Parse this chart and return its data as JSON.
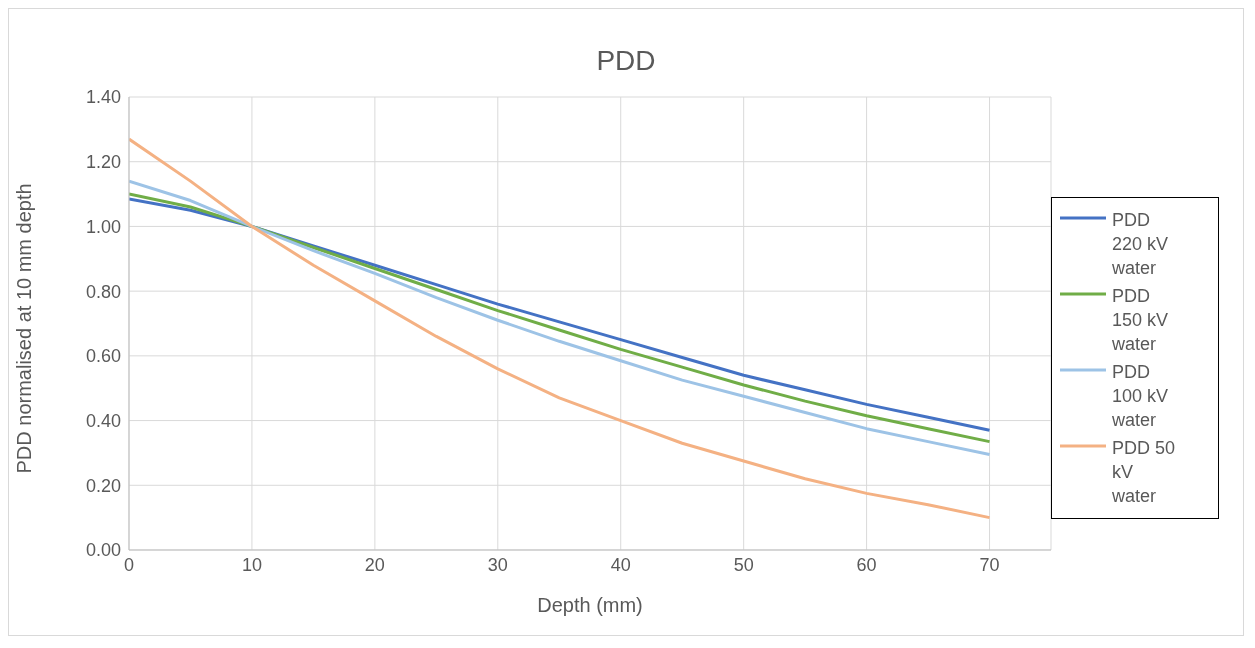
{
  "chart_data": {
    "type": "line",
    "title": "PDD",
    "xlabel": "Depth (mm)",
    "ylabel": "PDD normalised at 10 mm depth",
    "xlim": [
      0,
      75
    ],
    "xticks": [
      0,
      10,
      20,
      30,
      40,
      50,
      60,
      70
    ],
    "ylim": [
      0,
      1.4
    ],
    "yticks": [
      {
        "value": 0,
        "label": "0.00"
      },
      {
        "value": 0.2,
        "label": "0.20"
      },
      {
        "value": 0.4,
        "label": "0.40"
      },
      {
        "value": 0.6,
        "label": "0.60"
      },
      {
        "value": 0.8,
        "label": "0.80"
      },
      {
        "value": 1,
        "label": "1.00"
      },
      {
        "value": 1.2,
        "label": "1.20"
      },
      {
        "value": 1.4,
        "label": "1.40"
      }
    ],
    "grid": true,
    "legend": "right",
    "marker": "none",
    "line_style": "solid",
    "x": [
      0,
      5,
      10,
      15,
      20,
      25,
      30,
      35,
      40,
      45,
      50,
      55,
      60,
      65,
      70
    ],
    "series": [
      {
        "name": "PDD 220 kV water",
        "color": "#4472c4",
        "values": [
          1.085,
          1.05,
          1.0,
          0.94,
          0.88,
          0.82,
          0.76,
          0.705,
          0.65,
          0.595,
          0.54,
          0.495,
          0.45,
          0.41,
          0.37
        ]
      },
      {
        "name": "PDD 150 kV water",
        "color": "#70ad47",
        "values": [
          1.1,
          1.06,
          1.0,
          0.935,
          0.87,
          0.805,
          0.74,
          0.68,
          0.62,
          0.565,
          0.51,
          0.46,
          0.415,
          0.375,
          0.335
        ]
      },
      {
        "name": "PDD 100 kV water",
        "color": "#9dc3e6",
        "values": [
          1.14,
          1.08,
          1.0,
          0.925,
          0.855,
          0.78,
          0.71,
          0.645,
          0.585,
          0.525,
          0.475,
          0.425,
          0.375,
          0.335,
          0.295
        ]
      },
      {
        "name": "PDD 50 kV water",
        "color": "#f4b183",
        "values": [
          1.27,
          1.14,
          1.0,
          0.88,
          0.77,
          0.66,
          0.56,
          0.47,
          0.4,
          0.33,
          0.275,
          0.22,
          0.175,
          0.14,
          0.1
        ]
      }
    ]
  }
}
